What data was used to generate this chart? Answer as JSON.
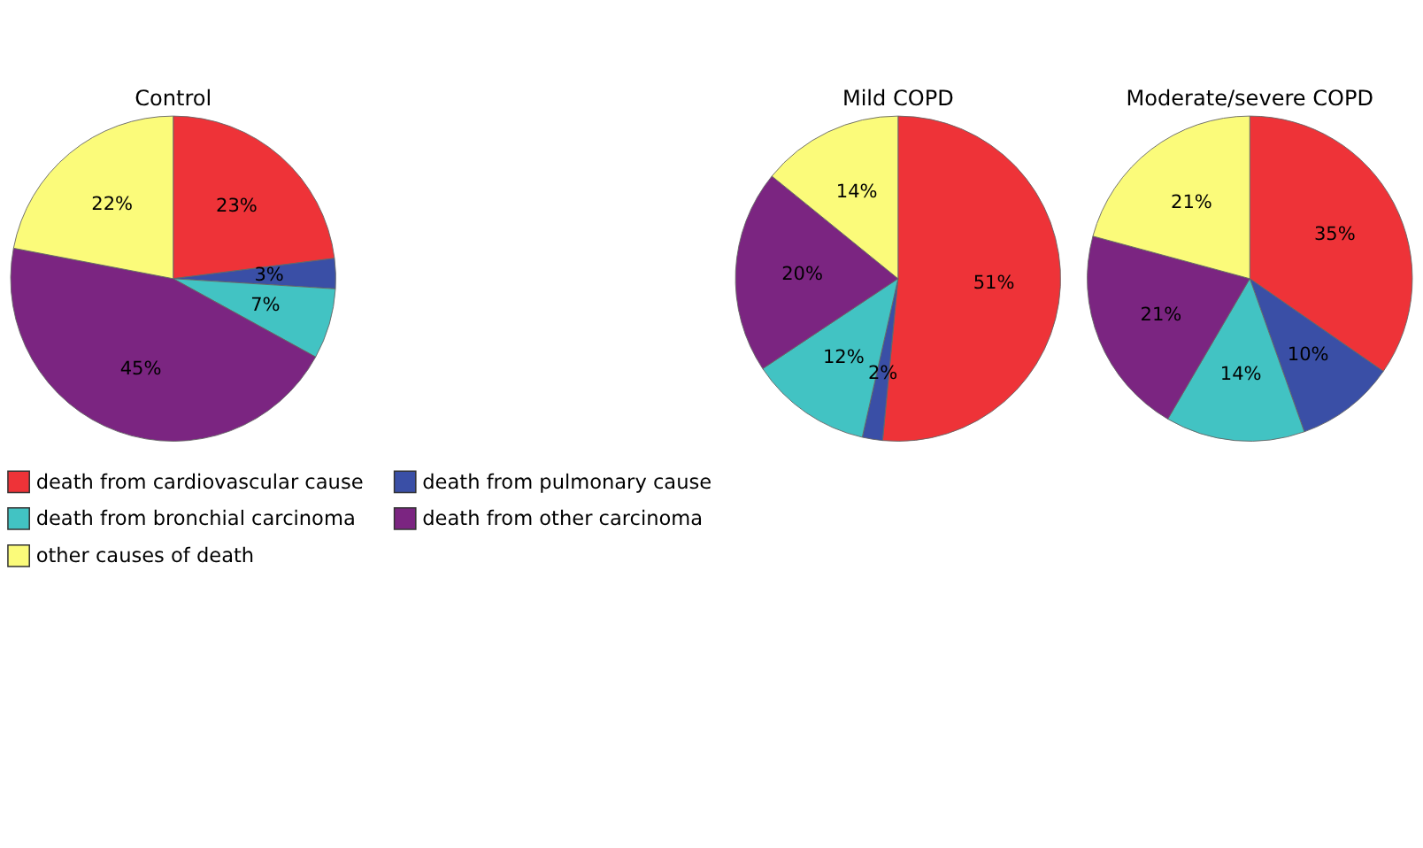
{
  "chart_data": [
    {
      "type": "pie",
      "title": "Control",
      "categories": [
        "death from cardiovascular cause",
        "death from pulmonary cause",
        "death from bronchial carcinoma",
        "death from other carcinoma",
        "other causes of death"
      ],
      "values": [
        23,
        3,
        7,
        45,
        22
      ],
      "value_labels": [
        "23%",
        "3%",
        "7%",
        "45%",
        "22%"
      ],
      "colors": [
        "#ee3338",
        "#3a4fa6",
        "#42c3c3",
        "#7b2581",
        "#fbfb7a"
      ],
      "legend": "bottom"
    },
    {
      "type": "pie",
      "title": "Mild COPD",
      "categories": [
        null,
        null,
        null,
        null,
        null
      ],
      "values": [
        51,
        2,
        12,
        20,
        14
      ],
      "value_labels": [
        "51%",
        "2%",
        "12%",
        "20%",
        "14%"
      ],
      "colors": [
        "#ee3338",
        "#3a4fa6",
        "#42c3c3",
        "#7b2581",
        "#fbfb7a"
      ]
    },
    {
      "type": "pie",
      "title": "Moderate/severe COPD",
      "categories": [
        null,
        null,
        null,
        null,
        null
      ],
      "values": [
        35,
        10,
        14,
        21,
        21
      ],
      "value_labels": [
        "35%",
        "10%",
        "14%",
        "21%",
        "21%"
      ],
      "colors": [
        "#ee3338",
        "#3a4fa6",
        "#42c3c3",
        "#7b2581",
        "#fbfb7a"
      ]
    }
  ]
}
